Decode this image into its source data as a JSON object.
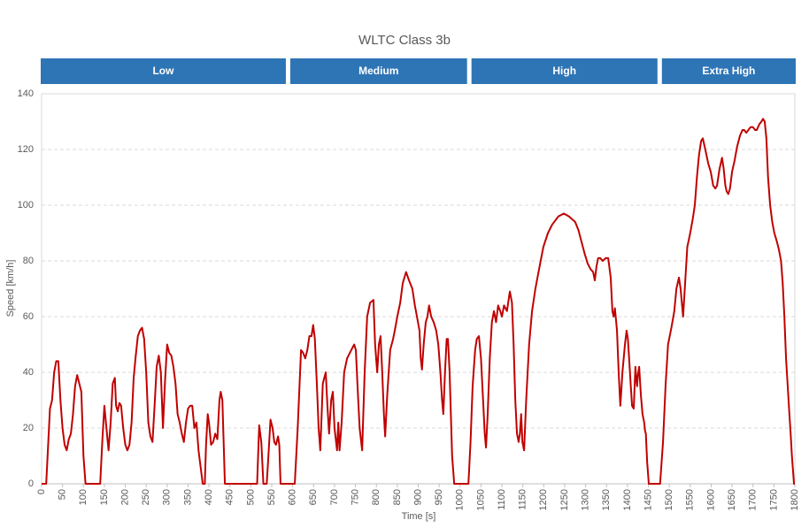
{
  "chart_data": {
    "type": "line",
    "title": "WLTC Class 3b",
    "x_label": "Time [s]",
    "y_label": "Speed [km/h]",
    "color": "#c00000",
    "grid": true,
    "phase_color": "#2e75b6",
    "phases": [
      {
        "name": "Low",
        "start": 0,
        "end": 589
      },
      {
        "name": "Medium",
        "start": 589,
        "end": 1022
      },
      {
        "name": "High",
        "start": 1022,
        "end": 1477
      },
      {
        "name": "Extra High",
        "start": 1477,
        "end": 1800
      }
    ],
    "xlim": [
      0,
      1800
    ],
    "xticks": [
      0,
      50,
      100,
      150,
      200,
      250,
      300,
      350,
      400,
      450,
      500,
      550,
      600,
      650,
      700,
      750,
      800,
      850,
      900,
      950,
      1000,
      1050,
      1100,
      1150,
      1200,
      1250,
      1300,
      1350,
      1400,
      1450,
      1500,
      1550,
      1600,
      1650,
      1700,
      1750,
      1800
    ],
    "ylim": [
      0,
      140
    ],
    "yticks": [
      0,
      20,
      40,
      60,
      80,
      100,
      120,
      140
    ],
    "x": [
      0,
      11,
      15,
      20,
      25,
      30,
      35,
      40,
      45,
      50,
      55,
      60,
      65,
      70,
      75,
      80,
      85,
      90,
      95,
      100,
      105,
      140,
      145,
      150,
      155,
      160,
      165,
      170,
      175,
      178,
      182,
      186,
      190,
      195,
      200,
      205,
      210,
      215,
      220,
      225,
      230,
      235,
      240,
      245,
      250,
      255,
      260,
      265,
      270,
      275,
      280,
      285,
      290,
      295,
      300,
      305,
      310,
      315,
      320,
      325,
      330,
      335,
      340,
      345,
      350,
      355,
      360,
      365,
      370,
      375,
      380,
      385,
      390,
      393,
      397,
      400,
      405,
      410,
      415,
      420,
      425,
      428,
      432,
      435,
      438,
      515,
      520,
      525,
      530,
      538,
      542,
      547,
      552,
      556,
      560,
      565,
      568,
      571,
      605,
      612,
      620,
      625,
      630,
      635,
      640,
      645,
      649,
      653,
      658,
      662,
      666,
      672,
      679,
      683,
      687,
      692,
      696,
      700,
      706,
      709,
      712,
      717,
      723,
      730,
      740,
      747,
      751,
      755,
      760,
      766,
      772,
      778,
      785,
      793,
      797,
      802,
      806,
      810,
      814,
      818,
      821,
      826,
      833,
      840,
      844,
      850,
      857,
      863,
      871,
      878,
      886,
      892,
      897,
      903,
      906,
      909,
      913,
      918,
      922,
      926,
      931,
      937,
      943,
      948,
      953,
      957,
      960,
      964,
      968,
      971,
      975,
      978,
      981,
      986,
      1020,
      1025,
      1030,
      1036,
      1040,
      1045,
      1050,
      1055,
      1059,
      1062,
      1066,
      1071,
      1076,
      1081,
      1086,
      1091,
      1096,
      1100,
      1105,
      1112,
      1119,
      1124,
      1128,
      1132,
      1136,
      1140,
      1143,
      1146,
      1149,
      1153,
      1158,
      1165,
      1172,
      1180,
      1190,
      1199,
      1210,
      1220,
      1235,
      1248,
      1260,
      1275,
      1283,
      1290,
      1297,
      1305,
      1312,
      1318,
      1322,
      1326,
      1330,
      1335,
      1341,
      1348,
      1354,
      1360,
      1364,
      1367,
      1370,
      1375,
      1379,
      1383,
      1388,
      1394,
      1398,
      1401,
      1404,
      1408,
      1411,
      1415,
      1419,
      1421,
      1423,
      1425,
      1428,
      1432,
      1436,
      1440,
      1442,
      1444,
      1447,
      1451,
      1478,
      1485,
      1491,
      1497,
      1505,
      1512,
      1517,
      1523,
      1527,
      1533,
      1537,
      1543,
      1550,
      1556,
      1561,
      1566,
      1571,
      1576,
      1580,
      1586,
      1593,
      1599,
      1605,
      1610,
      1614,
      1620,
      1626,
      1630,
      1634,
      1637,
      1641,
      1645,
      1650,
      1656,
      1662,
      1669,
      1675,
      1679,
      1684,
      1689,
      1694,
      1700,
      1705,
      1709,
      1715,
      1720,
      1724,
      1728,
      1732,
      1736,
      1741,
      1746,
      1751,
      1757,
      1762,
      1767,
      1771,
      1775,
      1779,
      1783,
      1787,
      1790,
      1793,
      1796,
      1798,
      1800
    ],
    "values": [
      0,
      0,
      12,
      27,
      30,
      40,
      44,
      44,
      30,
      20,
      14,
      12,
      16,
      18,
      25,
      35,
      39,
      36,
      33,
      10,
      0,
      0,
      15,
      28,
      20,
      12,
      22,
      36,
      38,
      28,
      26,
      29,
      28,
      20,
      14,
      12,
      14,
      22,
      38,
      46,
      53,
      55,
      56,
      52,
      40,
      22,
      17,
      15,
      28,
      42,
      46,
      40,
      20,
      37,
      50,
      47,
      46,
      42,
      36,
      25,
      22,
      18,
      15,
      22,
      27,
      28,
      28,
      20,
      22,
      12,
      6,
      0,
      0,
      14,
      25,
      22,
      14,
      15,
      18,
      16,
      30,
      33,
      30,
      15,
      0,
      0,
      21,
      15,
      0,
      0,
      10,
      23,
      20,
      15,
      14,
      17,
      14,
      0,
      0,
      20,
      48,
      47,
      45,
      48,
      53,
      53,
      57,
      52,
      35,
      20,
      12,
      36,
      40,
      28,
      18,
      30,
      33,
      20,
      12,
      22,
      12,
      22,
      40,
      45,
      48,
      50,
      48,
      35,
      20,
      12,
      40,
      60,
      65,
      66,
      50,
      40,
      50,
      53,
      40,
      25,
      17,
      32,
      48,
      52,
      55,
      60,
      65,
      72,
      76,
      73,
      70,
      64,
      60,
      55,
      45,
      41,
      50,
      58,
      60,
      64,
      60,
      58,
      55,
      50,
      40,
      30,
      25,
      40,
      52,
      52,
      40,
      25,
      10,
      0,
      0,
      15,
      35,
      48,
      52,
      53,
      45,
      30,
      18,
      13,
      25,
      45,
      58,
      62,
      58,
      64,
      62,
      60,
      64,
      62,
      69,
      65,
      50,
      30,
      18,
      15,
      18,
      25,
      15,
      12,
      30,
      50,
      62,
      70,
      78,
      85,
      90,
      93,
      96,
      97,
      96,
      94,
      91,
      87,
      83,
      79,
      77,
      76,
      73,
      78,
      81,
      81,
      80,
      81,
      81,
      74,
      62,
      60,
      63,
      55,
      40,
      28,
      40,
      50,
      55,
      52,
      45,
      35,
      28,
      27,
      42,
      38,
      35,
      39,
      42,
      32,
      25,
      22,
      19,
      18,
      8,
      0,
      0,
      15,
      35,
      50,
      56,
      62,
      70,
      74,
      70,
      60,
      70,
      85,
      90,
      95,
      100,
      110,
      118,
      123,
      124,
      120,
      115,
      112,
      107,
      106,
      107,
      113,
      117,
      113,
      107,
      105,
      104,
      106,
      112,
      116,
      121,
      125,
      127,
      127,
      126,
      127,
      128,
      128,
      127,
      127,
      129,
      130,
      131,
      130,
      124,
      110,
      100,
      94,
      90,
      87,
      84,
      80,
      72,
      60,
      45,
      35,
      25,
      18,
      10,
      4,
      0,
      0
    ]
  }
}
